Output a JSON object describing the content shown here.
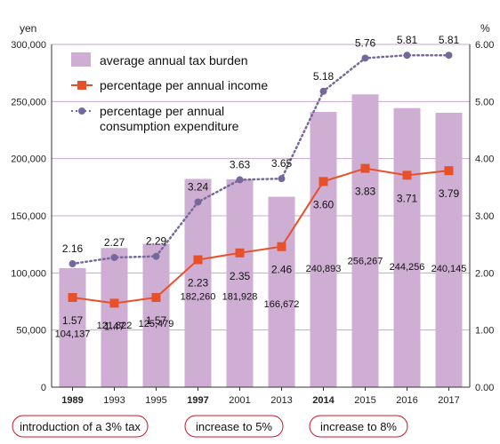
{
  "chart_data": {
    "type": "bar",
    "categories": [
      "1989",
      "1993",
      "1995",
      "1997",
      "2001",
      "2013",
      "2014",
      "2015",
      "2016",
      "2017"
    ],
    "highlighted_categories": [
      "1989",
      "1997",
      "2014"
    ],
    "ylabel_left": "yen",
    "ylabel_right": "%",
    "ylim_left": [
      0,
      300000
    ],
    "ylim_right": [
      0,
      6
    ],
    "yticks_left": [
      "0",
      "50,000",
      "100,000",
      "150,000",
      "200,000",
      "250,000",
      "300,000"
    ],
    "yticks_right": [
      "0.00",
      "1.00",
      "2.00",
      "3.00",
      "4.00",
      "5.00",
      "6.00"
    ],
    "series": [
      {
        "name": "average annual tax burden",
        "kind": "bar",
        "axis": "left",
        "values": [
          104137,
          121822,
          125479,
          182260,
          181928,
          166672,
          240893,
          256267,
          244256,
          240145
        ],
        "labels": [
          "104,137",
          "121,822",
          "125,479",
          "182,260",
          "181,928",
          "166,672",
          "240,893",
          "256,267",
          "244,256",
          "240,145"
        ]
      },
      {
        "name": "percentage per annual income",
        "kind": "line",
        "axis": "right",
        "values": [
          1.57,
          1.47,
          1.57,
          2.23,
          2.35,
          2.46,
          3.6,
          3.83,
          3.71,
          3.79
        ],
        "labels": [
          "1.57",
          "1.47",
          "1.57",
          "2.23",
          "2.35",
          "2.46",
          "3.60",
          "3.83",
          "3.71",
          "3.79"
        ]
      },
      {
        "name": "percentage per annual consumption expenditure",
        "kind": "dotted-line",
        "axis": "right",
        "values": [
          2.16,
          2.27,
          2.29,
          3.24,
          3.63,
          3.65,
          5.18,
          5.76,
          5.81,
          5.81
        ],
        "labels": [
          "2.16",
          "2.27",
          "2.29",
          "3.24",
          "3.63",
          "3.65",
          "5.18",
          "5.76",
          "5.81",
          "5.81"
        ]
      }
    ],
    "legend": {
      "placement": "top-left",
      "entries": [
        "average annual tax burden",
        "percentage per annual income",
        "percentage per annual",
        "consumption expenditure"
      ]
    },
    "annotations": [
      {
        "text": "introduction of a 3% tax",
        "category": "1989"
      },
      {
        "text": "increase to 5%",
        "category": "1997"
      },
      {
        "text": "increase to 8%",
        "category": "2014"
      }
    ],
    "colors": {
      "bar": "#cfaed4",
      "income_line": "#e8502a",
      "consumption_line": "#75689a",
      "highlight_text": "#d0162a",
      "grid": "#c9a4cf",
      "callout_border": "#d0162a"
    },
    "grid": "horizontal"
  }
}
